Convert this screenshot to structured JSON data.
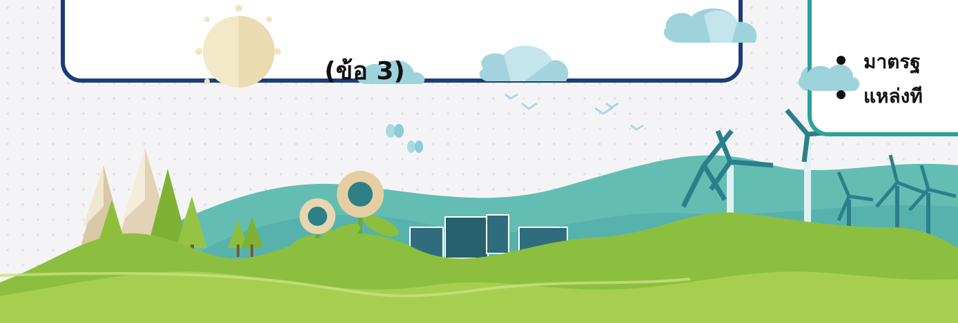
{
  "left_box": {
    "label": "(ข้อ 3)"
  },
  "right_box": {
    "items": [
      {
        "text": "มาตรฐ"
      },
      {
        "text": "แหล่งที"
      }
    ]
  },
  "colors": {
    "left_border": "#1d3a7c",
    "right_border": "#2aa39b",
    "grass": "#8cbf3f",
    "hill": "#5fb8b0",
    "cloud": "#9fd3dc",
    "sun": "#f4e8c4"
  },
  "icons": [
    "sun-icon",
    "cloud-icon",
    "bird-icon",
    "butterfly-icon",
    "wind-turbine-icon",
    "solar-panel-icon",
    "sunflower-icon",
    "tree-icon",
    "mountain-icon"
  ]
}
